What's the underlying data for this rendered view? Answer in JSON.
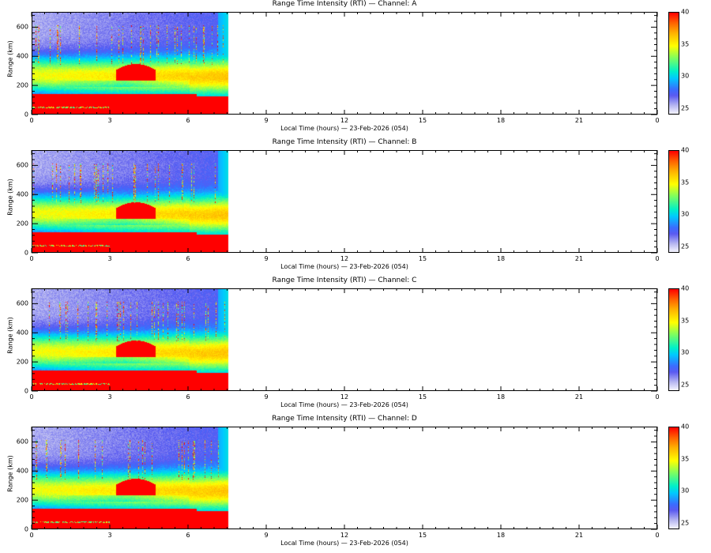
{
  "chart_data": [
    {
      "type": "heatmap",
      "title": "Range Time Intensity (RTI) — Channel: A",
      "xlabel": "Local Time (hours) — 23-Feb-2026 (054)",
      "ylabel": "Range (km)",
      "xlim": [
        0,
        24
      ],
      "ylim": [
        0,
        705
      ],
      "data_extent_hours": [
        0,
        7.5
      ],
      "clim": [
        24,
        40
      ]
    },
    {
      "type": "heatmap",
      "title": "Range Time Intensity (RTI) — Channel: B",
      "xlabel": "Local Time (hours) — 23-Feb-2026 (054)",
      "ylabel": "Range (km)",
      "xlim": [
        0,
        24
      ],
      "ylim": [
        0,
        705
      ],
      "data_extent_hours": [
        0,
        7.5
      ],
      "clim": [
        24,
        40
      ]
    },
    {
      "type": "heatmap",
      "title": "Range Time Intensity (RTI) — Channel: C",
      "xlabel": "Local Time (hours) — 23-Feb-2026 (054)",
      "ylabel": "Range (km)",
      "xlim": [
        0,
        24
      ],
      "ylim": [
        0,
        705
      ],
      "data_extent_hours": [
        0,
        7.5
      ],
      "clim": [
        24,
        40
      ]
    },
    {
      "type": "heatmap",
      "title": "Range Time Intensity (RTI) — Channel: D",
      "xlabel": "Local Time (hours) — 23-Feb-2026 (054)",
      "ylabel": "Range (km)",
      "xlim": [
        0,
        24
      ],
      "ylim": [
        0,
        705
      ],
      "data_extent_hours": [
        0,
        7.5
      ],
      "clim": [
        24,
        40
      ]
    }
  ],
  "x_ticks": [
    "0",
    "3",
    "6",
    "9",
    "12",
    "15",
    "18",
    "21",
    "0"
  ],
  "x_tick_values": [
    0,
    3,
    6,
    9,
    12,
    15,
    18,
    21,
    24
  ],
  "y_ticks": [
    "0",
    "200",
    "400",
    "600"
  ],
  "y_tick_values": [
    0,
    200,
    400,
    600
  ],
  "colorbar_ticks": [
    "25",
    "30",
    "35",
    "40"
  ],
  "colorbar_tick_values": [
    25,
    30,
    35,
    40
  ]
}
